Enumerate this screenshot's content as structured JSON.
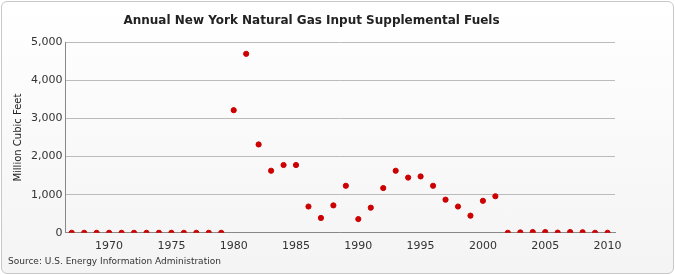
{
  "chart_data": {
    "type": "scatter",
    "title": "Annual New York Natural Gas Input Supplemental Fuels",
    "y_label": "Million Cubic Feet",
    "source": "Source: U.S. Energy Information Administration",
    "x": [
      1967,
      1968,
      1969,
      1970,
      1971,
      1972,
      1973,
      1974,
      1975,
      1976,
      1977,
      1978,
      1979,
      1980,
      1981,
      1982,
      1983,
      1984,
      1985,
      1986,
      1987,
      1988,
      1989,
      1990,
      1991,
      1992,
      1993,
      1994,
      1995,
      1996,
      1997,
      1998,
      1999,
      2000,
      2001,
      2002,
      2003,
      2004,
      2005,
      2006,
      2007,
      2008,
      2009,
      2010
    ],
    "values": [
      0,
      0,
      0,
      0,
      0,
      0,
      0,
      0,
      0,
      0,
      0,
      0,
      0,
      3220,
      4700,
      2320,
      1630,
      1780,
      1780,
      690,
      390,
      720,
      1235,
      360,
      660,
      1175,
      1630,
      1450,
      1480,
      1235,
      870,
      690,
      450,
      840,
      960,
      0,
      10,
      20,
      20,
      5,
      20,
      15,
      0,
      0
    ],
    "color": "#cc0000",
    "marker": "circle",
    "xlim": [
      1966.5,
      2010.6
    ],
    "xticks": [
      1970,
      1975,
      1980,
      1985,
      1990,
      1995,
      2000,
      2005,
      2010
    ],
    "ylim": [
      0,
      5000
    ],
    "yticks": [
      0,
      {
        "value": 1000,
        "label": "1,000"
      },
      {
        "value": 2000,
        "label": "2,000"
      },
      {
        "value": 3000,
        "label": "3,000"
      },
      {
        "value": 4000,
        "label": "4,000"
      },
      {
        "value": 5000,
        "label": "5,000"
      }
    ],
    "grid": true
  }
}
